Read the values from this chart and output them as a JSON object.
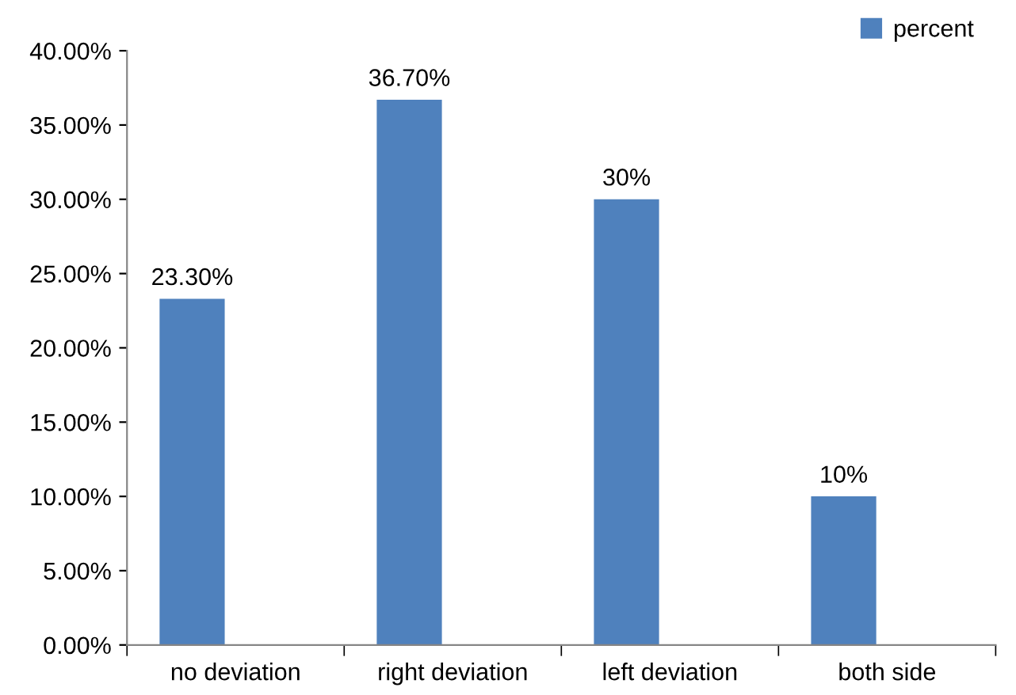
{
  "chart_data": {
    "type": "bar",
    "categories": [
      "no deviation",
      "right deviation",
      "left deviation",
      "both side"
    ],
    "series": [
      {
        "name": "percent",
        "color": "#4f81bd",
        "values": [
          23.3,
          36.7,
          30,
          10
        ],
        "value_labels": [
          "23.30%",
          "36.70%",
          "30%",
          "10%"
        ]
      }
    ],
    "ylim": [
      0,
      40
    ],
    "yticks": [
      {
        "value": 0,
        "label": "0.00%"
      },
      {
        "value": 5,
        "label": "5.00%"
      },
      {
        "value": 10,
        "label": "10.00%"
      },
      {
        "value": 15,
        "label": "15.00%"
      },
      {
        "value": 20,
        "label": "20.00%"
      },
      {
        "value": 25,
        "label": "25.00%"
      },
      {
        "value": 30,
        "label": "30.00%"
      },
      {
        "value": 35,
        "label": "35.00%"
      },
      {
        "value": 40,
        "label": "40.00%"
      }
    ],
    "grid": false,
    "legend": "top right"
  }
}
